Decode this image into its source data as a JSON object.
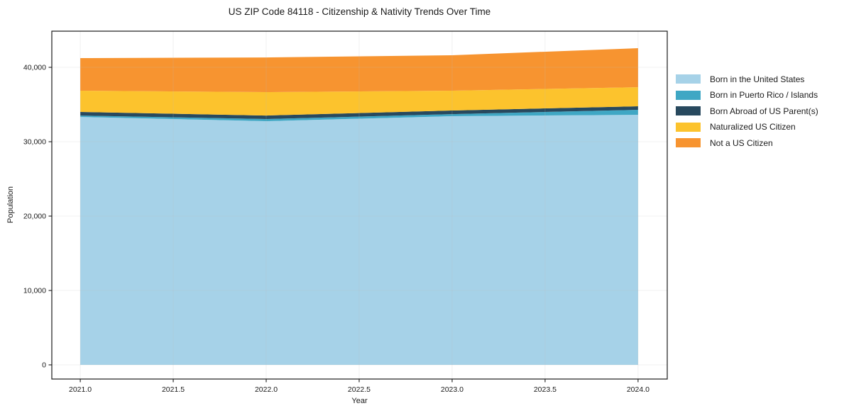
{
  "chart_data": {
    "type": "area",
    "stacked": true,
    "title": "US ZIP Code 84118 - Citizenship & Nativity Trends Over Time",
    "xlabel": "Year",
    "ylabel": "Population",
    "x": [
      2021,
      2022,
      2023,
      2024
    ],
    "series": [
      {
        "name": "Born in the United States",
        "color": "#A6D2E8",
        "values": [
          33330,
          32760,
          33430,
          33620
        ]
      },
      {
        "name": "Born in Puerto Rico / Islands",
        "color": "#3FA7C4",
        "values": [
          190,
          290,
          280,
          670
        ]
      },
      {
        "name": "Born Abroad of US Parent(s)",
        "color": "#28495E",
        "values": [
          480,
          470,
          480,
          470
        ]
      },
      {
        "name": "Naturalized US Citizen",
        "color": "#FCC32D",
        "values": [
          2860,
          3150,
          2670,
          2570
        ]
      },
      {
        "name": "Not a US Citizen",
        "color": "#F79430",
        "values": [
          4380,
          4660,
          4760,
          5240
        ]
      }
    ],
    "totals": [
      41240,
      41330,
      41620,
      42570
    ],
    "xticks": {
      "values": [
        2021.0,
        2021.5,
        2022.0,
        2022.5,
        2023.0,
        2023.5,
        2024.0
      ],
      "labels": [
        "2021.0",
        "2021.5",
        "2022.0",
        "2022.5",
        "2023.0",
        "2023.5",
        "2024.0"
      ]
    },
    "yticks": {
      "values": [
        0,
        10000,
        20000,
        30000,
        40000
      ],
      "labels": [
        "0",
        "10,000",
        "20,000",
        "30,000",
        "40,000"
      ]
    },
    "xlim": [
      2020.847,
      2024.157
    ],
    "ylim": [
      -1905,
      44860
    ],
    "grid": true,
    "legend_position": "right"
  },
  "colors": {
    "background": "#ffffff",
    "spine": "#1a1a1a",
    "grid": "#bbbbbb",
    "tick_text": "#1a1a1a"
  }
}
